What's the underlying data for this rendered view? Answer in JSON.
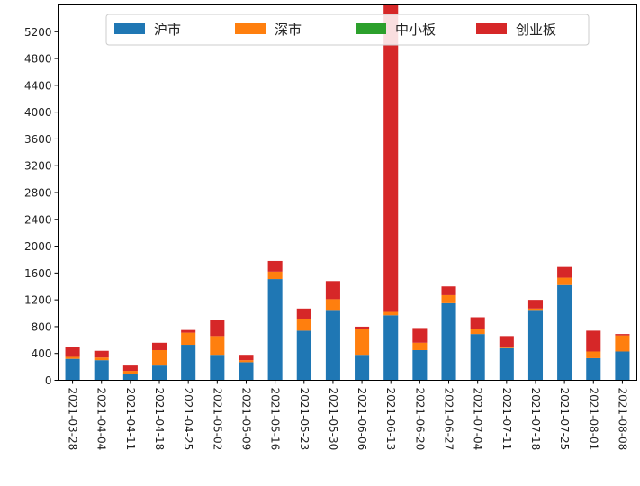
{
  "chart_data": {
    "type": "bar",
    "stacked": true,
    "categories": [
      "2021-03-28",
      "2021-04-04",
      "2021-04-11",
      "2021-04-18",
      "2021-04-25",
      "2021-05-02",
      "2021-05-09",
      "2021-05-16",
      "2021-05-23",
      "2021-05-30",
      "2021-06-06",
      "2021-06-13",
      "2021-06-20",
      "2021-06-27",
      "2021-07-04",
      "2021-07-11",
      "2021-07-18",
      "2021-07-25",
      "2021-08-01",
      "2021-08-08"
    ],
    "series": [
      {
        "name": "沪市",
        "color": "#1f77b4",
        "values": [
          320,
          300,
          100,
          220,
          530,
          380,
          270,
          1510,
          740,
          1050,
          380,
          970,
          450,
          1150,
          690,
          480,
          1050,
          1420,
          330,
          430
        ]
      },
      {
        "name": "深市",
        "color": "#ff7f0e",
        "values": [
          30,
          40,
          40,
          230,
          180,
          280,
          30,
          110,
          180,
          160,
          390,
          50,
          110,
          120,
          80,
          10,
          20,
          110,
          100,
          240
        ]
      },
      {
        "name": "中小板",
        "color": "#2ca02c",
        "values": [
          0,
          0,
          0,
          0,
          0,
          0,
          0,
          0,
          0,
          0,
          0,
          0,
          0,
          0,
          0,
          0,
          0,
          0,
          0,
          0
        ]
      },
      {
        "name": "创业板",
        "color": "#d62728",
        "values": [
          150,
          100,
          80,
          110,
          40,
          240,
          80,
          160,
          150,
          270,
          30,
          4600,
          220,
          130,
          170,
          170,
          130,
          160,
          310,
          20
        ]
      }
    ],
    "title": "",
    "xlabel": "",
    "ylabel": "",
    "ylim": [
      0,
      5600
    ],
    "yticks": [
      0,
      400,
      800,
      1200,
      1600,
      2000,
      2400,
      2800,
      3200,
      3600,
      4000,
      4400,
      4800,
      5200
    ],
    "grid": false,
    "legend_position": "top-center"
  }
}
